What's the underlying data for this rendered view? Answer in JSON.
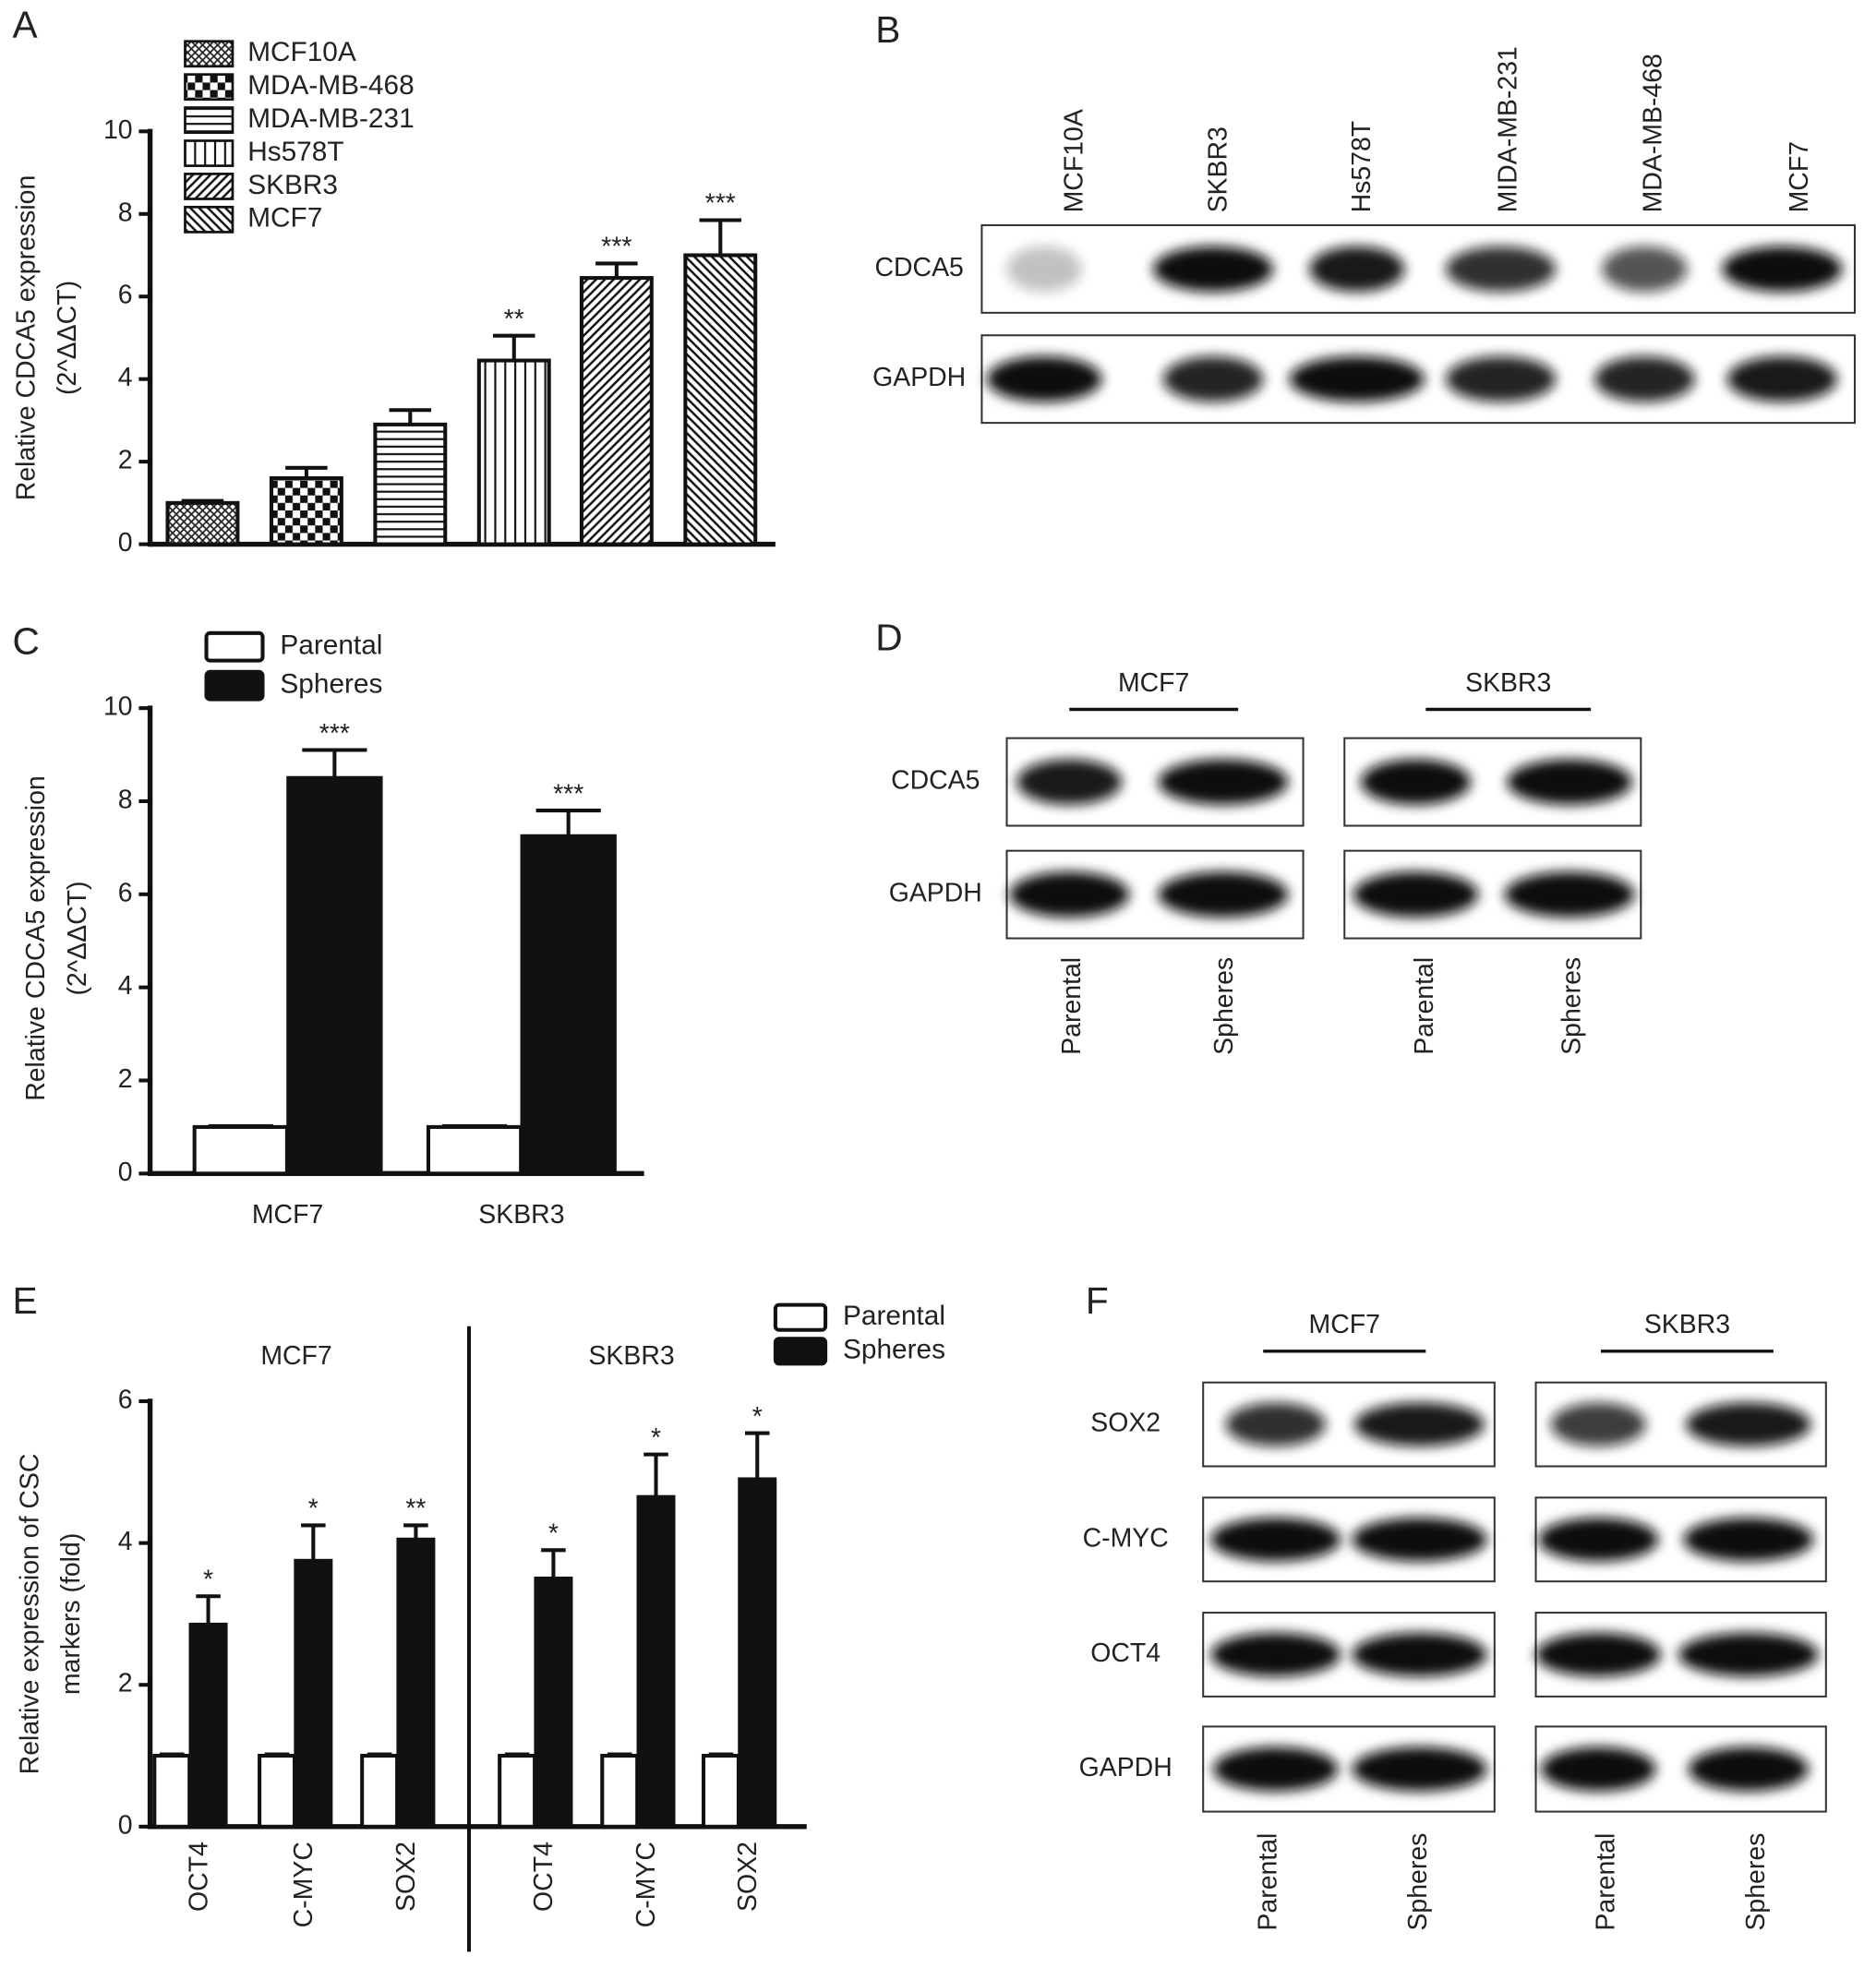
{
  "chart_data": [
    {
      "type": "bar",
      "label": "A",
      "categories": [
        "MCF10A",
        "MDA-MB-468",
        "MDA-MB-231",
        "Hs578T",
        "SKBR3",
        "MCF7"
      ],
      "values": [
        1.0,
        1.6,
        2.9,
        4.45,
        6.45,
        7.0
      ],
      "errors": [
        0.05,
        0.25,
        0.35,
        0.6,
        0.35,
        0.85
      ],
      "annotations": [
        null,
        null,
        null,
        "**",
        "***",
        "***"
      ],
      "patterns": [
        "crosshatch",
        "checker",
        "horizontal",
        "vertical",
        "diagonal",
        "diagonal-reverse"
      ],
      "ylabel": [
        "Relative CDCA5 expression",
        "(2^ΔΔCT)"
      ],
      "ylim": [
        0,
        10
      ],
      "yticks": [
        0,
        2,
        4,
        6,
        8,
        10
      ]
    },
    {
      "type": "grouped_bar",
      "label": "C",
      "categories": [
        "MCF7",
        "SKBR3"
      ],
      "series": [
        {
          "name": "Parental",
          "color": "#ffffff",
          "values": [
            1,
            1
          ],
          "errors": [
            0.02,
            0.02
          ]
        },
        {
          "name": "Spheres",
          "color": "#111111",
          "values": [
            8.5,
            7.25
          ],
          "errors": [
            0.6,
            0.55
          ],
          "annotations": [
            "***",
            "***"
          ]
        }
      ],
      "ylabel": [
        "Relative CDCA5 expression",
        "(2^ΔΔCT)"
      ],
      "ylim": [
        0,
        10
      ],
      "yticks": [
        0,
        2,
        4,
        6,
        8,
        10
      ]
    },
    {
      "type": "grouped_bar",
      "label": "E",
      "groups": [
        "MCF7",
        "SKBR3"
      ],
      "categories": [
        "OCT4",
        "C-MYC",
        "SOX2",
        "OCT4",
        "C-MYC",
        "SOX2"
      ],
      "series": [
        {
          "name": "Parental",
          "color": "#ffffff",
          "values": [
            1,
            1,
            1,
            1,
            1,
            1
          ],
          "errors": [
            0.02,
            0.02,
            0.02,
            0.02,
            0.02,
            0.02
          ]
        },
        {
          "name": "Spheres",
          "color": "#111111",
          "values": [
            2.85,
            3.75,
            4.05,
            3.5,
            4.65,
            4.9
          ],
          "errors": [
            0.4,
            0.5,
            0.2,
            0.4,
            0.6,
            0.65
          ],
          "annotations": [
            "*",
            "*",
            "**",
            "*",
            "*",
            "*"
          ]
        }
      ],
      "ylabel": [
        "Relative expression of CSC",
        "markers (fold)"
      ],
      "ylim": [
        0,
        6
      ],
      "yticks": [
        0,
        2,
        4,
        6
      ]
    }
  ],
  "blots": [
    {
      "label": "B",
      "lanes": [
        "MCF10A",
        "SKBR3",
        "Hs578T",
        "MIDA-MB-231",
        "MDA-MB-468",
        "MCF7"
      ],
      "rows": [
        "CDCA5",
        "GAPDH"
      ]
    },
    {
      "label": "D",
      "groups": [
        "MCF7",
        "SKBR3"
      ],
      "lanes": [
        "Parental",
        "Spheres",
        "Parental",
        "Spheres"
      ],
      "rows": [
        "CDCA5",
        "GAPDH"
      ]
    },
    {
      "label": "F",
      "groups": [
        "MCF7",
        "SKBR3"
      ],
      "lanes": [
        "Parental",
        "Spheres",
        "Parental",
        "Spheres"
      ],
      "rows": [
        "SOX2",
        "C-MYC",
        "OCT4",
        "GAPDH"
      ]
    }
  ]
}
